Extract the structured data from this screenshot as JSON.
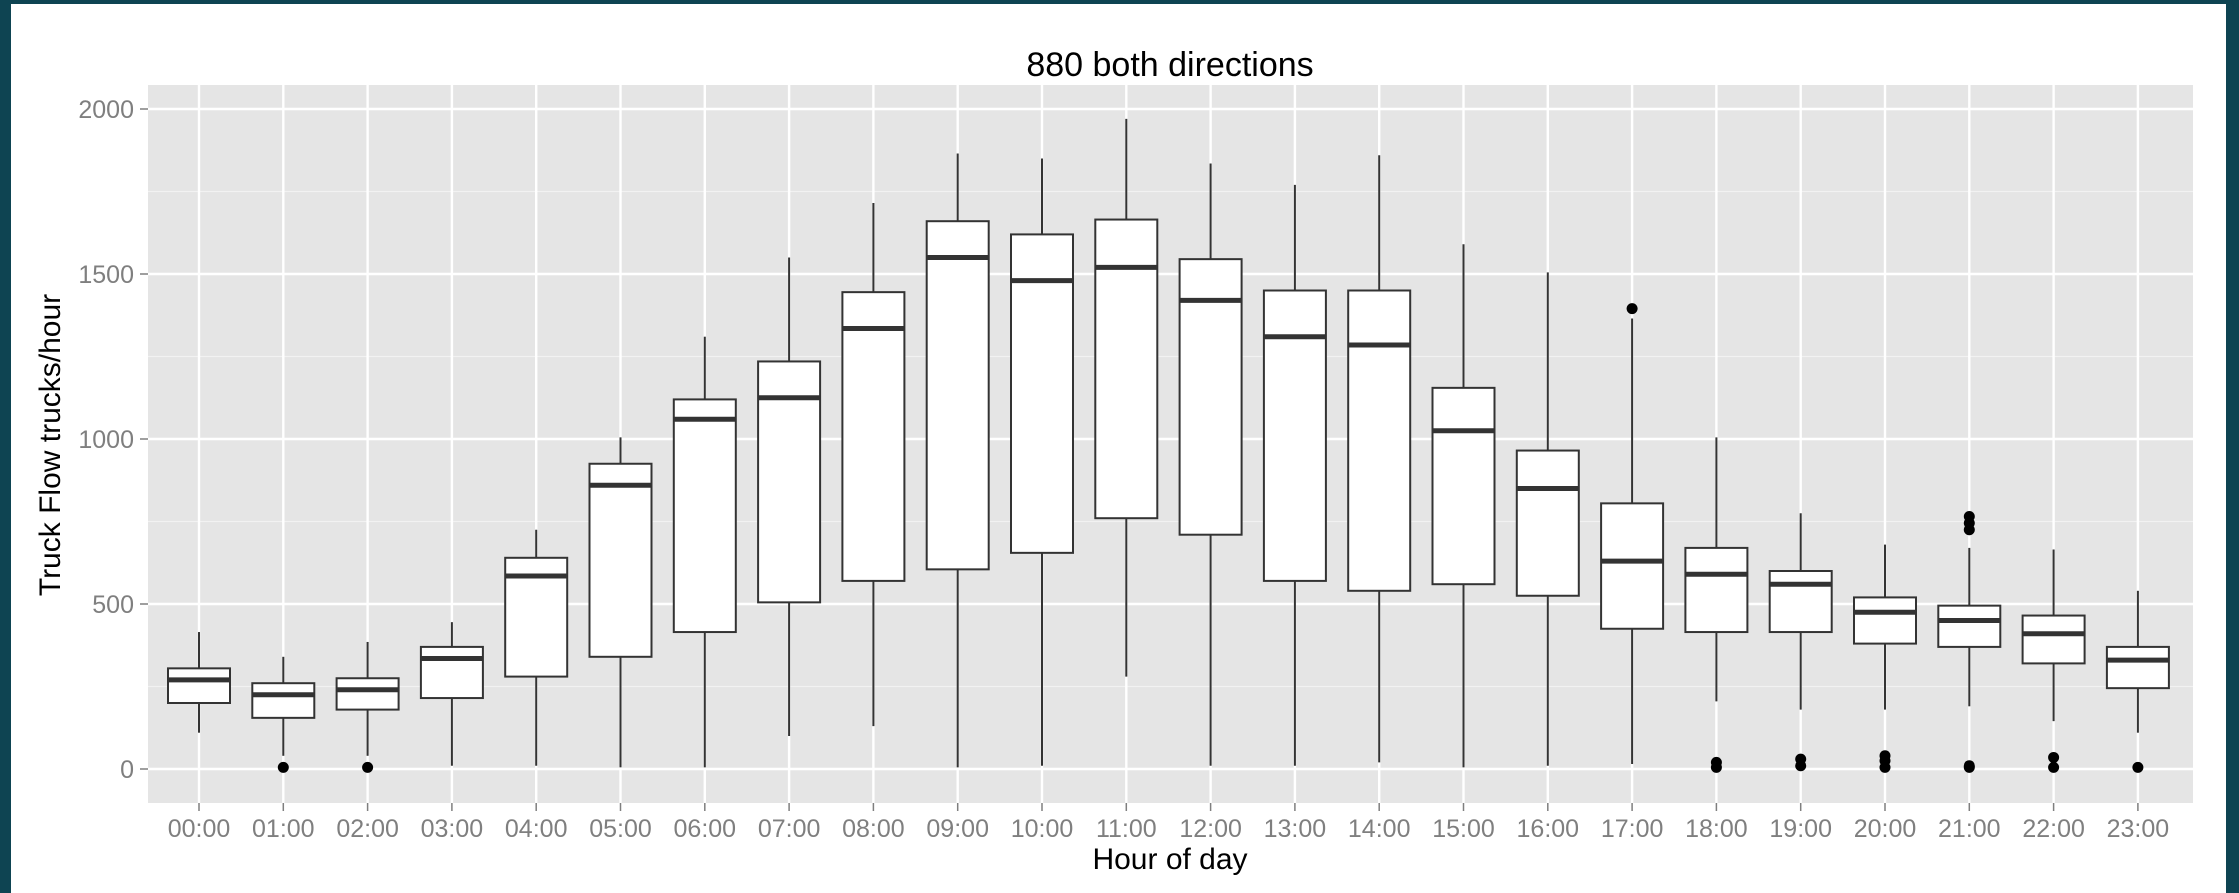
{
  "chart_data": {
    "type": "box",
    "title": "880 both directions",
    "xlabel": "Hour of day",
    "ylabel": "Truck Flow trucks/hour",
    "ylim": [
      -100,
      2070
    ],
    "yticks": [
      0,
      500,
      1000,
      1500,
      2000
    ],
    "grid": true,
    "legend": "none",
    "colors": {
      "background": "#0e4452",
      "panel": "#e5e5e5",
      "grid": "#ffffff",
      "box_fill": "#ffffff",
      "box_line": "#333333",
      "tick_text": "#7f7f7f"
    },
    "categories": [
      "00:00",
      "01:00",
      "02:00",
      "03:00",
      "04:00",
      "05:00",
      "06:00",
      "07:00",
      "08:00",
      "09:00",
      "10:00",
      "11:00",
      "12:00",
      "13:00",
      "14:00",
      "15:00",
      "16:00",
      "17:00",
      "18:00",
      "19:00",
      "20:00",
      "21:00",
      "22:00",
      "23:00"
    ],
    "boxes": [
      {
        "low": 110,
        "q1": 200,
        "median": 270,
        "q3": 305,
        "high": 415,
        "outliers": []
      },
      {
        "low": 40,
        "q1": 155,
        "median": 225,
        "q3": 260,
        "high": 340,
        "outliers": [
          5
        ]
      },
      {
        "low": 40,
        "q1": 180,
        "median": 240,
        "q3": 275,
        "high": 385,
        "outliers": [
          5
        ]
      },
      {
        "low": 10,
        "q1": 215,
        "median": 335,
        "q3": 370,
        "high": 445,
        "outliers": []
      },
      {
        "low": 10,
        "q1": 280,
        "median": 585,
        "q3": 640,
        "high": 725,
        "outliers": []
      },
      {
        "low": 5,
        "q1": 340,
        "median": 860,
        "q3": 925,
        "high": 1005,
        "outliers": []
      },
      {
        "low": 5,
        "q1": 415,
        "median": 1060,
        "q3": 1120,
        "high": 1310,
        "outliers": []
      },
      {
        "low": 100,
        "q1": 505,
        "median": 1125,
        "q3": 1235,
        "high": 1550,
        "outliers": []
      },
      {
        "low": 130,
        "q1": 570,
        "median": 1335,
        "q3": 1445,
        "high": 1715,
        "outliers": []
      },
      {
        "low": 5,
        "q1": 605,
        "median": 1550,
        "q3": 1660,
        "high": 1865,
        "outliers": []
      },
      {
        "low": 10,
        "q1": 655,
        "median": 1480,
        "q3": 1620,
        "high": 1850,
        "outliers": []
      },
      {
        "low": 280,
        "q1": 760,
        "median": 1520,
        "q3": 1665,
        "high": 1970,
        "outliers": []
      },
      {
        "low": 10,
        "q1": 710,
        "median": 1420,
        "q3": 1545,
        "high": 1835,
        "outliers": []
      },
      {
        "low": 10,
        "q1": 570,
        "median": 1310,
        "q3": 1450,
        "high": 1770,
        "outliers": []
      },
      {
        "low": 20,
        "q1": 540,
        "median": 1285,
        "q3": 1450,
        "high": 1860,
        "outliers": []
      },
      {
        "low": 5,
        "q1": 560,
        "median": 1025,
        "q3": 1155,
        "high": 1590,
        "outliers": []
      },
      {
        "low": 10,
        "q1": 525,
        "median": 850,
        "q3": 965,
        "high": 1505,
        "outliers": []
      },
      {
        "low": 15,
        "q1": 425,
        "median": 630,
        "q3": 805,
        "high": 1365,
        "outliers": [
          1395
        ]
      },
      {
        "low": 205,
        "q1": 415,
        "median": 590,
        "q3": 670,
        "high": 1005,
        "outliers": [
          5,
          20
        ]
      },
      {
        "low": 180,
        "q1": 415,
        "median": 560,
        "q3": 600,
        "high": 775,
        "outliers": [
          10,
          30
        ]
      },
      {
        "low": 180,
        "q1": 380,
        "median": 475,
        "q3": 520,
        "high": 680,
        "outliers": [
          5,
          25,
          40
        ]
      },
      {
        "low": 190,
        "q1": 370,
        "median": 450,
        "q3": 495,
        "high": 670,
        "outliers": [
          5,
          10,
          725,
          745,
          765
        ]
      },
      {
        "low": 145,
        "q1": 320,
        "median": 410,
        "q3": 465,
        "high": 665,
        "outliers": [
          5,
          35
        ]
      },
      {
        "low": 110,
        "q1": 245,
        "median": 330,
        "q3": 370,
        "high": 540,
        "outliers": [
          5
        ]
      }
    ]
  }
}
